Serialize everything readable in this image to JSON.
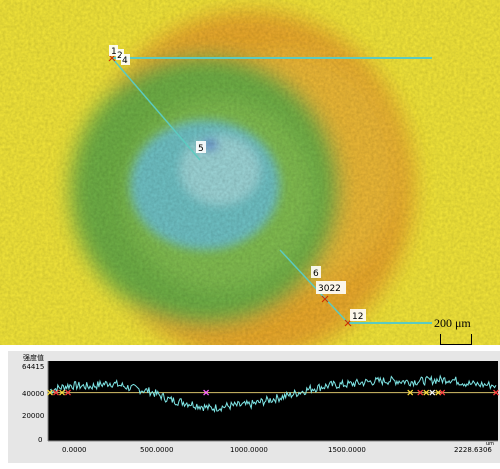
{
  "scale_bar": {
    "label": "200 μm"
  },
  "markers": [
    {
      "id": "m1",
      "label": "1",
      "role": "start"
    },
    {
      "id": "m2",
      "label": "2",
      "role": "start"
    },
    {
      "id": "m4",
      "label": "4",
      "role": "start"
    },
    {
      "id": "m5",
      "label": "5",
      "role": "center"
    },
    {
      "id": "m6",
      "label": "6",
      "role": "end"
    },
    {
      "id": "m12",
      "label": "12",
      "role": "end"
    }
  ],
  "end_marker_cluster": "3022",
  "colors": {
    "yellow": "#f5e83a",
    "orange": "#eba12c",
    "green": "#6fb146",
    "cyan": "#6fc3c6",
    "blue": "#3a62c9",
    "line": "#5ccbc0",
    "panel_bg": "#000000",
    "trace": "#7fe6e6",
    "axis_line": "#d6c06a",
    "cross_red": "#ff4040",
    "cross_yellow": "#ffe040"
  },
  "profile": {
    "title": "强度值",
    "y_ticks": [
      "64415",
      "40000",
      "20000",
      "0"
    ],
    "x_ticks": [
      "0.0000",
      "500.0000",
      "1000.0000",
      "1500.0000"
    ],
    "x_end": "2228.6306",
    "x_unit": "um"
  },
  "chart_data": {
    "type": "line",
    "xlabel": "",
    "ylabel": "强度值",
    "x_unit": "um",
    "xlim": [
      0,
      2228.6306
    ],
    "ylim": [
      0,
      64415
    ],
    "series": [
      {
        "x": [
          0,
          100,
          200,
          300,
          400,
          500,
          600,
          700,
          800,
          900,
          1000,
          1100,
          1200,
          1300,
          1400,
          1500,
          1600,
          1700,
          1800,
          1900,
          2000,
          2100,
          2228.6306
        ],
        "y": [
          42000,
          46000,
          45000,
          48000,
          44000,
          41000,
          34000,
          31000,
          27000,
          29000,
          30000,
          34000,
          38000,
          43000,
          46000,
          47000,
          49000,
          50000,
          49000,
          50000,
          51000,
          47000,
          46000
        ]
      }
    ],
    "reference_line_y": 40000,
    "grid": false
  }
}
